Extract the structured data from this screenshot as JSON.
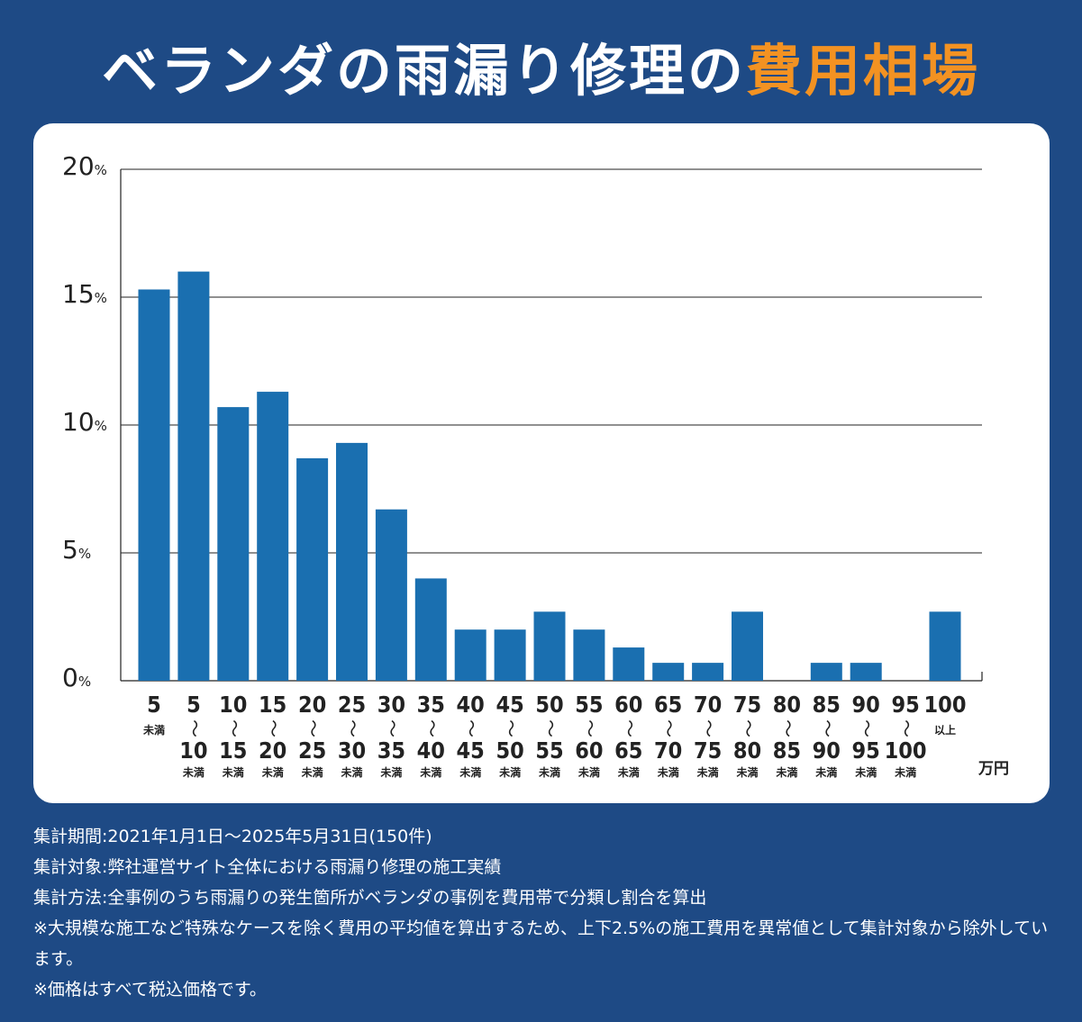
{
  "title": {
    "main": "ベランダの雨漏り修理の",
    "accent": "費用相場"
  },
  "colors": {
    "background": "#1e4a85",
    "bar": "#1a6fb0",
    "accent": "#f39222",
    "card": "#ffffff"
  },
  "chart_data": {
    "type": "bar",
    "ylim": [
      0,
      20
    ],
    "yticks": [
      0,
      5,
      10,
      15,
      20
    ],
    "ytick_unit": "%",
    "unit_label": "万円",
    "grid": true,
    "categories": [
      {
        "top": "5",
        "bottom": "",
        "suffix": "未満"
      },
      {
        "top": "5",
        "bottom": "10",
        "suffix": "未満"
      },
      {
        "top": "10",
        "bottom": "15",
        "suffix": "未満"
      },
      {
        "top": "15",
        "bottom": "20",
        "suffix": "未満"
      },
      {
        "top": "20",
        "bottom": "25",
        "suffix": "未満"
      },
      {
        "top": "25",
        "bottom": "30",
        "suffix": "未満"
      },
      {
        "top": "30",
        "bottom": "35",
        "suffix": "未満"
      },
      {
        "top": "35",
        "bottom": "40",
        "suffix": "未満"
      },
      {
        "top": "40",
        "bottom": "45",
        "suffix": "未満"
      },
      {
        "top": "45",
        "bottom": "50",
        "suffix": "未満"
      },
      {
        "top": "50",
        "bottom": "55",
        "suffix": "未満"
      },
      {
        "top": "55",
        "bottom": "60",
        "suffix": "未満"
      },
      {
        "top": "60",
        "bottom": "65",
        "suffix": "未満"
      },
      {
        "top": "65",
        "bottom": "70",
        "suffix": "未満"
      },
      {
        "top": "70",
        "bottom": "75",
        "suffix": "未満"
      },
      {
        "top": "75",
        "bottom": "80",
        "suffix": "未満"
      },
      {
        "top": "80",
        "bottom": "85",
        "suffix": "未満"
      },
      {
        "top": "85",
        "bottom": "90",
        "suffix": "未満"
      },
      {
        "top": "90",
        "bottom": "95",
        "suffix": "未満"
      },
      {
        "top": "95",
        "bottom": "100",
        "suffix": "未満"
      },
      {
        "top": "100",
        "bottom": "",
        "suffix": "以上"
      }
    ],
    "values": [
      15.3,
      16.0,
      10.7,
      11.3,
      8.7,
      9.3,
      6.7,
      4.0,
      2.0,
      2.0,
      2.7,
      2.0,
      1.3,
      0.7,
      0.7,
      2.7,
      0,
      0.7,
      0.7,
      0,
      2.7
    ]
  },
  "notes": [
    "集計期間:2021年1月1日～2025年5月31日(150件)",
    "集計対象:弊社運営サイト全体における雨漏り修理の施工実績",
    "集計方法:全事例のうち雨漏りの発生箇所がベランダの事例を費用帯で分類し割合を算出",
    "※大規模な施工など特殊なケースを除く費用の平均値を算出するため、上下2.5%の施工費用を異常値として集計対象から除外しています。",
    "※価格はすべて税込価格です。"
  ]
}
